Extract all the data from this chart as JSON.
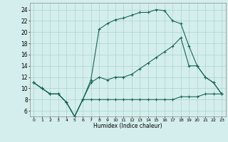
{
  "title": "",
  "xlabel": "Humidex (Indice chaleur)",
  "bg_color": "#d4eeed",
  "grid_color": "#aad4cc",
  "line_color": "#1a6655",
  "xlim": [
    -0.5,
    23.5
  ],
  "ylim": [
    5.0,
    25.2
  ],
  "xticks": [
    0,
    1,
    2,
    3,
    4,
    5,
    6,
    7,
    8,
    9,
    10,
    11,
    12,
    13,
    14,
    15,
    16,
    17,
    18,
    19,
    20,
    21,
    22,
    23
  ],
  "yticks": [
    6,
    8,
    10,
    12,
    14,
    16,
    18,
    20,
    22,
    24
  ],
  "line1_x": [
    0,
    1,
    2,
    3,
    4,
    5,
    6,
    7,
    8,
    9,
    10,
    11,
    12,
    13,
    14,
    15,
    16,
    17,
    18,
    19,
    20,
    21,
    22,
    23
  ],
  "line1_y": [
    11,
    10,
    9,
    9,
    7.5,
    5,
    8,
    8,
    8,
    8,
    8,
    8,
    8,
    8,
    8,
    8,
    8,
    8,
    8.5,
    8.5,
    8.5,
    9,
    9,
    9
  ],
  "line2_x": [
    0,
    1,
    2,
    3,
    4,
    5,
    6,
    7,
    8,
    9,
    10,
    11,
    12,
    13,
    14,
    15,
    16,
    17,
    18,
    19,
    20,
    21,
    22,
    23
  ],
  "line2_y": [
    11,
    10,
    9,
    9,
    7.5,
    5,
    8,
    11,
    12,
    11.5,
    12,
    12,
    12.5,
    13.5,
    14.5,
    15.5,
    16.5,
    17.5,
    19,
    14,
    14,
    12,
    11,
    9
  ],
  "line3_x": [
    0,
    1,
    2,
    3,
    4,
    5,
    6,
    7,
    8,
    9,
    10,
    11,
    12,
    13,
    14,
    15,
    16,
    17,
    18,
    19,
    20,
    21,
    22,
    23
  ],
  "line3_y": [
    11,
    10,
    9,
    9,
    7.5,
    5,
    8,
    11.5,
    20.5,
    21.5,
    22.2,
    22.5,
    23,
    23.5,
    23.5,
    24,
    23.8,
    22,
    21.5,
    17.5,
    14,
    12,
    11,
    9
  ]
}
